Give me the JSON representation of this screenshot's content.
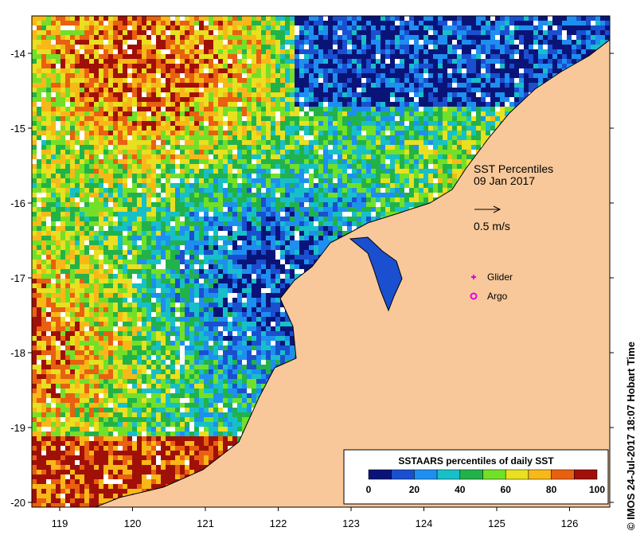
{
  "map": {
    "title": "SST Percentiles",
    "date": "09 Jan 2017",
    "scale_label": "0.5 m/s",
    "legend_markers": [
      {
        "label": "Glider",
        "symbol": "plus",
        "color": "#e000e0"
      },
      {
        "label": "Argo",
        "symbol": "circle",
        "color": "#e000e0"
      }
    ],
    "x_ticks": [
      "119",
      "120",
      "121",
      "122",
      "123",
      "124",
      "125",
      "126"
    ],
    "y_ticks": [
      "-14",
      "-15",
      "-16",
      "-17",
      "-18",
      "-19",
      "-20"
    ],
    "colorbar": {
      "title": "SSTAARS percentiles of daily SST",
      "tick_labels": [
        "0",
        "20",
        "40",
        "60",
        "80",
        "100"
      ],
      "colors": [
        "#0a1478",
        "#1a4fd0",
        "#1e8ff0",
        "#17c0c8",
        "#22b24a",
        "#72e028",
        "#e8e020",
        "#f8b818",
        "#e86010",
        "#a01008"
      ]
    },
    "credit": "© IMOS 24-Jul-2017 18:07 Hobart Time",
    "land_color": "#f8c89a"
  }
}
